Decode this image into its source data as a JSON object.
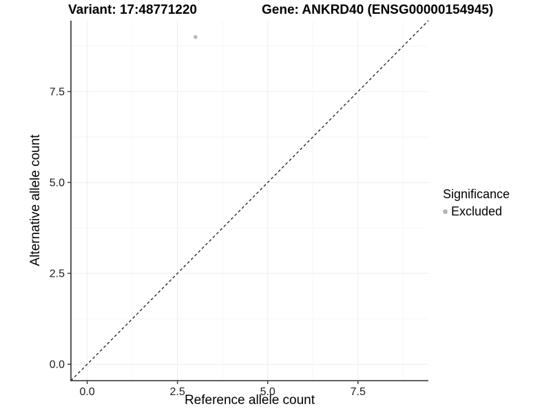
{
  "chart_data": {
    "type": "scatter",
    "titles": {
      "left": "Variant: 17:48771220",
      "right": "Gene: ANKRD40 (ENSG00000154945)"
    },
    "xlabel": "Reference allele count",
    "ylabel": "Alternative allele count",
    "x_axis": {
      "limits": [
        -0.45,
        9.45
      ],
      "ticks": [
        0,
        2.5,
        5,
        7.5
      ],
      "tick_labels": [
        "0.0",
        "2.5",
        "5.0",
        "7.5"
      ],
      "minor_ticks": [
        1.25,
        3.75,
        6.25,
        8.75
      ]
    },
    "y_axis": {
      "limits": [
        -0.45,
        9.45
      ],
      "ticks": [
        0,
        2.5,
        5,
        7.5
      ],
      "tick_labels": [
        "0.0",
        "2.5",
        "5.0",
        "7.5"
      ],
      "minor_ticks": [
        1.25,
        3.75,
        6.25,
        8.75
      ]
    },
    "points": [
      {
        "x": 3,
        "y": 9,
        "significance": "Excluded"
      }
    ],
    "reference_line": {
      "slope": 1,
      "intercept": 0,
      "linetype": "dashed"
    },
    "legend": {
      "title": "Significance",
      "position": "right",
      "entries": [
        {
          "label": "Excluded",
          "color": "#b6b6b6"
        }
      ]
    },
    "grid": {
      "show": true,
      "minor": true
    },
    "style": {
      "background": "#ffffff",
      "grid_major_color": "#ececec",
      "grid_minor_color": "#f6f6f6",
      "axis_line_color": "#2b2b2b",
      "tick_mark_color": "#333333",
      "tick_label_color": "#1a1a1a",
      "reference_line_color": "#1a1a1a",
      "point_radius": 2.8
    }
  }
}
